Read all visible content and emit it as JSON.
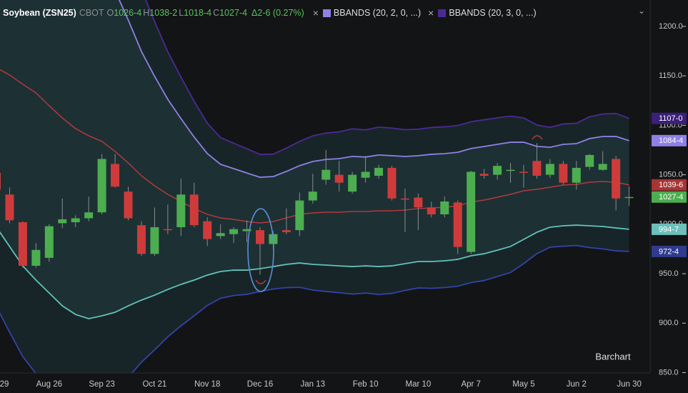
{
  "chart_data": {
    "type": "candlestick",
    "header": {
      "symbol": "Soybean (ZSN25)",
      "exchange": "CBOT",
      "fields": [
        {
          "key": "O",
          "value": "1026-4"
        },
        {
          "key": "H",
          "value": "1038-2"
        },
        {
          "key": "L",
          "value": "1018-4"
        },
        {
          "key": "C",
          "value": "1027-4"
        }
      ],
      "change": "Δ2-6 (0.27%)"
    },
    "watermark": "Barchart",
    "categories": [
      "29",
      null,
      null,
      null,
      "Aug 26",
      null,
      null,
      null,
      "Sep 23",
      null,
      null,
      null,
      "Oct 21",
      null,
      null,
      null,
      "Nov 18",
      null,
      null,
      null,
      "Dec 16",
      null,
      null,
      null,
      "Jan 13",
      null,
      null,
      null,
      "Feb 10",
      null,
      null,
      null,
      "Mar 10",
      null,
      null,
      null,
      "Apr 7",
      null,
      null,
      null,
      "May 5",
      null,
      null,
      null,
      "Jun 2",
      null,
      null,
      null,
      "Jun 30"
    ],
    "open": [
      1052,
      1030,
      1002,
      958,
      966,
      1001,
      1002,
      1006,
      1012,
      1061,
      1033,
      999,
      970,
      995,
      997,
      1030,
      1003,
      988,
      990,
      993,
      994,
      980,
      994,
      994,
      1024,
      1045,
      1050,
      1033,
      1047,
      1049,
      1057,
      1026,
      1027,
      1017,
      1010,
      1022,
      972,
      1051,
      1050,
      1054,
      1053,
      1064,
      1050,
      1061,
      1042,
      1058,
      1055,
      1066,
      1026.5
    ],
    "high": [
      1060,
      1037,
      1003,
      981,
      1000,
      1026,
      1009,
      1028,
      1071,
      1071,
      1038,
      1003,
      1017,
      1020,
      1046,
      1042,
      1007,
      1000,
      997,
      1004,
      997,
      993,
      1016,
      1032,
      1051,
      1075,
      1064,
      1053,
      1069,
      1060,
      1059,
      1036,
      1031,
      1023,
      1028,
      1024,
      1054,
      1056,
      1062,
      1062,
      1060,
      1082,
      1066,
      1064,
      1064,
      1071,
      1074,
      1069,
      1038.25
    ],
    "low": [
      1030,
      1001,
      956,
      956,
      962,
      996,
      997,
      1003,
      1010,
      1037,
      1004,
      968,
      968,
      990,
      988,
      997,
      978,
      985,
      981,
      982,
      949,
      975,
      990,
      988,
      1021,
      1040,
      1033,
      1031,
      1042,
      1046,
      1024,
      992,
      994,
      1007,
      1007,
      970,
      970,
      1046,
      1045,
      1042,
      1037,
      1046,
      1047,
      1040,
      1035,
      1055,
      1054,
      1014,
      1018.5
    ],
    "close": [
      1035,
      1004,
      958,
      974,
      998,
      1005,
      1006,
      1012,
      1066,
      1038,
      1006,
      970,
      997,
      994,
      1030,
      999,
      985,
      991,
      995,
      995,
      980,
      990,
      992,
      1024,
      1033,
      1055,
      1042,
      1050,
      1053,
      1057,
      1026,
      1025,
      1017,
      1010,
      1023,
      977,
      1053,
      1049,
      1059,
      1055,
      1052,
      1049,
      1061,
      1042,
      1057,
      1070,
      1061,
      1026,
      1027.5
    ],
    "up_color": "#4cae4f",
    "down_color": "#cf3b3b",
    "bands": [
      {
        "name": "BBANDS (20, 2, 0, ...)",
        "color": "#8e80e6",
        "lower_color": "#62c2bb",
        "middle_color": "#b23a3a",
        "fill": "#1d3034",
        "upper": [
          1319.2,
          1324.3,
          1325.1,
          1322.1,
          1309.1,
          1297.5,
          1284.6,
          1274.5,
          1260.0,
          1236.2,
          1206.5,
          1174.7,
          1149.5,
          1126.3,
          1106.8,
          1088.1,
          1071.4,
          1060.6,
          1056.2,
          1051.8,
          1047.5,
          1048.2,
          1053.4,
          1059.2,
          1063.4,
          1065.5,
          1066.3,
          1068.6,
          1067.9,
          1070.0,
          1069.3,
          1068.5,
          1069.3,
          1070.7,
          1071.4,
          1072.7,
          1076.5,
          1078.6,
          1080.8,
          1082.9,
          1082.9,
          1078.7,
          1077.8,
          1080.8,
          1081.5,
          1086.6,
          1088.7,
          1088.8,
          1084.5
        ],
        "middle": [
          1158.1,
          1150.9,
          1141.5,
          1132.8,
          1119.8,
          1107.5,
          1096.7,
          1089.5,
          1083.7,
          1073.6,
          1062.0,
          1049.0,
          1038.9,
          1030.2,
          1023.0,
          1015.8,
          1010.0,
          1006.4,
          1004.9,
          1002.7,
          1001.3,
          1002.7,
          1006.4,
          1010.0,
          1011.4,
          1012.1,
          1012.1,
          1012.9,
          1012.9,
          1013.6,
          1013.6,
          1014.3,
          1015.8,
          1016.5,
          1017.2,
          1018.6,
          1022.3,
          1024.4,
          1027.3,
          1030.2,
          1033.8,
          1035.3,
          1037.4,
          1039.6,
          1040.3,
          1042.5,
          1043.2,
          1042.5,
          1039.75
        ],
        "lower": [
          997.0,
          977.5,
          957.9,
          943.5,
          930.5,
          917.5,
          908.8,
          904.5,
          907.4,
          911.0,
          917.5,
          923.3,
          928.3,
          934.1,
          939.2,
          943.5,
          948.6,
          952.2,
          953.6,
          953.6,
          955.1,
          957.2,
          959.4,
          960.8,
          959.4,
          958.7,
          957.9,
          957.2,
          957.9,
          957.2,
          957.9,
          960.1,
          962.3,
          962.3,
          963.0,
          964.5,
          968.1,
          970.2,
          973.8,
          977.5,
          984.7,
          991.9,
          997.0,
          998.4,
          999.1,
          998.4,
          997.7,
          996.2,
          994.875
        ]
      },
      {
        "name": "BBANDS (20, 3, 0, ...)",
        "color": "#4b2a96",
        "lower_color": "#3243a8",
        "fill": "#182528",
        "upper": [
          1399.8,
          1411.0,
          1416.9,
          1416.8,
          1403.8,
          1392.5,
          1378.6,
          1367.0,
          1348.2,
          1317.5,
          1278.8,
          1237.6,
          1204.8,
          1174.4,
          1148.7,
          1124.3,
          1102.1,
          1087.7,
          1081.9,
          1076.4,
          1070.6,
          1070.9,
          1076.9,
          1083.8,
          1089.4,
          1092.2,
          1093.4,
          1096.5,
          1095.4,
          1098.2,
          1097.2,
          1095.6,
          1096.1,
          1097.8,
          1098.5,
          1099.8,
          1103.6,
          1105.7,
          1107.6,
          1109.3,
          1107.5,
          1100.4,
          1098.0,
          1101.4,
          1102.1,
          1108.7,
          1111.5,
          1112.0,
          1107.0
        ],
        "lower": [
          916.5,
          890.8,
          866.1,
          848.9,
          835.9,
          822.5,
          814.8,
          812.0,
          819.3,
          829.7,
          845.3,
          860.5,
          873.0,
          886.1,
          897.3,
          907.4,
          917.9,
          925.1,
          927.9,
          929.1,
          932.0,
          934.5,
          935.9,
          936.2,
          933.4,
          932.0,
          930.8,
          929.4,
          930.4,
          929.0,
          930.1,
          933.0,
          935.6,
          935.2,
          935.9,
          937.4,
          941.0,
          943.1,
          947.1,
          951.2,
          960.2,
          970.2,
          976.8,
          977.8,
          978.5,
          976.4,
          975.0,
          973.1,
          972.5
        ]
      }
    ],
    "price_tags": [
      {
        "value": 1107,
        "label": "1107-0",
        "color": "#3b1f78"
      },
      {
        "value": 1084.5,
        "label": "1084-4",
        "color": "#8e80e6"
      },
      {
        "value": 1039.75,
        "label": "1039-6",
        "color": "#a83434"
      },
      {
        "value": 1027.5,
        "label": "1027-4",
        "color": "#4cae4f"
      },
      {
        "value": 994.875,
        "label": "994-7",
        "color": "#6cbfba"
      },
      {
        "value": 972.5,
        "label": "972-4",
        "color": "#2f3b8e"
      }
    ],
    "ylim": [
      849.6,
      1226.7
    ],
    "yticks": [
      {
        "value": 850,
        "label": "850.0"
      },
      {
        "value": 900,
        "label": "900.0"
      },
      {
        "value": 950,
        "label": "950.0"
      },
      {
        "value": 1000,
        "label": "1000.0"
      },
      {
        "value": 1050,
        "label": "1050.0"
      },
      {
        "value": 1100,
        "label": "1100.0"
      },
      {
        "value": 1150,
        "label": "1150.0"
      },
      {
        "value": 1200,
        "label": "1200.0"
      }
    ],
    "grid": false
  }
}
